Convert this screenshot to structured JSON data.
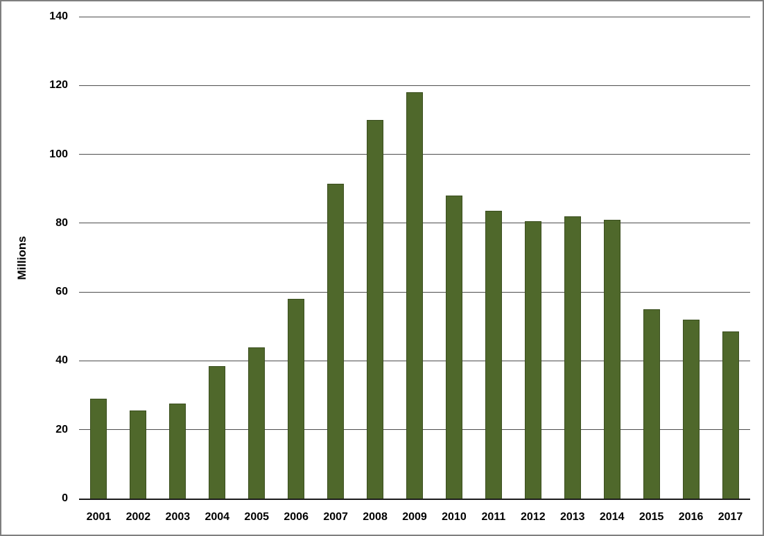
{
  "chart_data": {
    "type": "bar",
    "title": "",
    "xlabel": "",
    "ylabel": "Millions",
    "categories": [
      "2001",
      "2002",
      "2003",
      "2004",
      "2005",
      "2006",
      "2007",
      "2008",
      "2009",
      "2010",
      "2011",
      "2012",
      "2013",
      "2014",
      "2015",
      "2016",
      "2017"
    ],
    "values": [
      29,
      25.5,
      27.5,
      38.5,
      44,
      58,
      91.5,
      110,
      118,
      88,
      83.5,
      80.5,
      82,
      81,
      55,
      52,
      48.5
    ],
    "ylim": [
      0,
      140
    ],
    "yticks": [
      0,
      20,
      40,
      60,
      80,
      100,
      120,
      140
    ],
    "grid": "horizontal",
    "legend": "none",
    "bar_color": "#4f682b",
    "bar_border_color": "#3a4e1e",
    "gridline_color": "#4d4d4d",
    "axis_color": "#1a1a1a",
    "frame_border_color": "#7f7f7f"
  }
}
